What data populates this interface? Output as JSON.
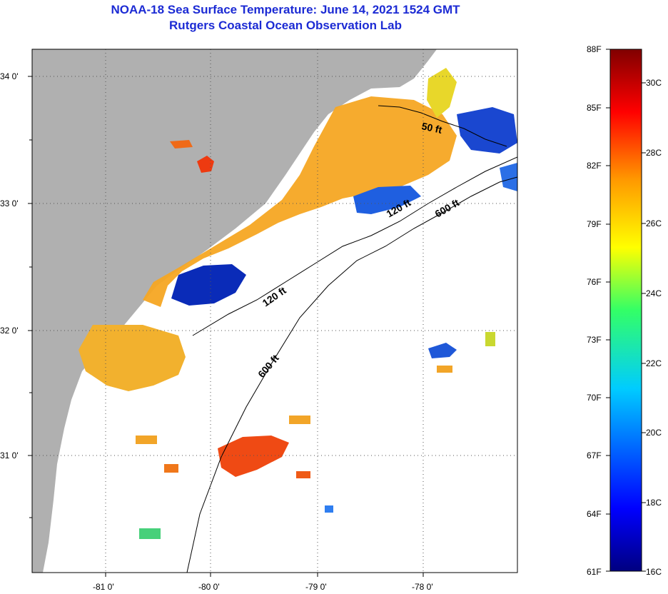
{
  "title": {
    "line1": "NOAA-18 Sea Surface Temperature:  June 14, 2021 1524 GMT",
    "line2": "Rutgers Coastal Ocean Observation Lab"
  },
  "map": {
    "lat_labels": [
      "34 0'",
      "33 0'",
      "32 0'",
      "31 0'"
    ],
    "lon_labels": [
      "-81 0'",
      "-80 0'",
      "-79 0'",
      "-78 0'"
    ],
    "contour_labels": [
      "50 ft",
      "120 ft",
      "600 ft",
      "120 ft",
      "600 ft"
    ],
    "colors": {
      "land": "#b0b0b0",
      "cloud": "#ffffff",
      "warm": "#f6a623",
      "cold": "#0a2bb8"
    }
  },
  "colorbar": {
    "fahrenheit": [
      "88F",
      "85F",
      "82F",
      "79F",
      "76F",
      "73F",
      "70F",
      "67F",
      "64F",
      "61F"
    ],
    "celsius": [
      "30C",
      "28C",
      "26C",
      "24C",
      "22C",
      "20C",
      "18C",
      "16C"
    ]
  }
}
